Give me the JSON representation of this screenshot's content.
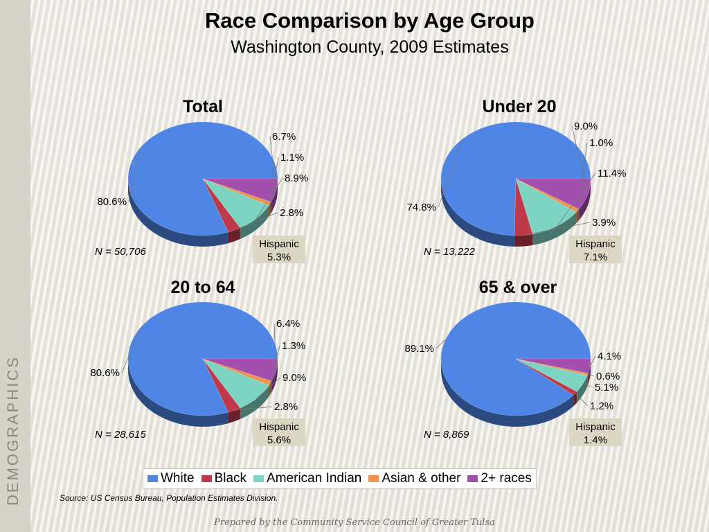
{
  "side_label": "DEMOGRAPHICS",
  "title": "Race Comparison by Age Group",
  "subtitle": "Washington County, 2009 Estimates",
  "colors": {
    "White": "#4f86e6",
    "Black": "#c0394a",
    "American Indian": "#7dd4c2",
    "Asian & other": "#ef9350",
    "2+ races": "#a24fae"
  },
  "legend": [
    "White",
    "Black",
    "American Indian",
    "Asian & other",
    "2+ races"
  ],
  "chart_data": [
    {
      "type": "pie",
      "title": "Total",
      "n_label": "N = 50,706",
      "hispanic_label": "Hispanic",
      "hispanic_value": "5.3%",
      "slices": [
        {
          "category": "White",
          "value": 80.6,
          "label": "80.6%"
        },
        {
          "category": "Black",
          "value": 2.8,
          "label": "2.8%"
        },
        {
          "category": "American Indian",
          "value": 8.9,
          "label": "8.9%"
        },
        {
          "category": "Asian & other",
          "value": 1.1,
          "label": "1.1%"
        },
        {
          "category": "2+ races",
          "value": 6.7,
          "label": "6.7%"
        }
      ]
    },
    {
      "type": "pie",
      "title": "Under 20",
      "n_label": "N = 13,222",
      "hispanic_label": "Hispanic",
      "hispanic_value": "7.1%",
      "slices": [
        {
          "category": "White",
          "value": 74.8,
          "label": "74.8%"
        },
        {
          "category": "Black",
          "value": 3.9,
          "label": "3.9%"
        },
        {
          "category": "American Indian",
          "value": 11.4,
          "label": "11.4%"
        },
        {
          "category": "Asian & other",
          "value": 1.0,
          "label": "1.0%"
        },
        {
          "category": "2+ races",
          "value": 9.0,
          "label": "9.0%"
        }
      ]
    },
    {
      "type": "pie",
      "title": "20 to 64",
      "n_label": "N = 28,615",
      "hispanic_label": "Hispanic",
      "hispanic_value": "5.6%",
      "slices": [
        {
          "category": "White",
          "value": 80.6,
          "label": "80.6%"
        },
        {
          "category": "Black",
          "value": 2.8,
          "label": "2.8%"
        },
        {
          "category": "American Indian",
          "value": 9.0,
          "label": "9.0%"
        },
        {
          "category": "Asian & other",
          "value": 1.3,
          "label": "1.3%"
        },
        {
          "category": "2+ races",
          "value": 6.4,
          "label": "6.4%"
        }
      ]
    },
    {
      "type": "pie",
      "title": "65 & over",
      "n_label": "N = 8,869",
      "hispanic_label": "Hispanic",
      "hispanic_value": "1.4%",
      "slices": [
        {
          "category": "White",
          "value": 89.1,
          "label": "89.1%"
        },
        {
          "category": "Black",
          "value": 1.2,
          "label": "1.2%"
        },
        {
          "category": "American Indian",
          "value": 5.1,
          "label": "5.1%"
        },
        {
          "category": "Asian & other",
          "value": 0.6,
          "label": "0.6%"
        },
        {
          "category": "2+ races",
          "value": 4.1,
          "label": "4.1%"
        }
      ]
    }
  ],
  "source": "Source:  US Census Bureau, Population Estimates Division.",
  "footer": "Prepared by the Community Service Council of Greater Tulsa"
}
